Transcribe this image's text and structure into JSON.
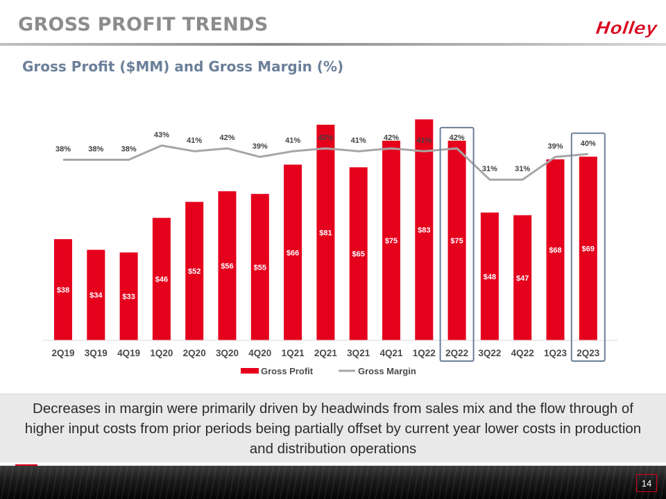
{
  "header": {
    "title": "GROSS PROFIT TRENDS",
    "logo_text": "Holley",
    "subtitle": "Gross Profit ($MM) and Gross Margin (%)"
  },
  "colors": {
    "bar": "#e5001c",
    "line": "#a6a6a6",
    "highlight_box": "#6a7f98",
    "logo": "#d9001b"
  },
  "chart_data": {
    "type": "bar",
    "categories": [
      "2Q19",
      "3Q19",
      "4Q19",
      "1Q20",
      "2Q20",
      "3Q20",
      "4Q20",
      "1Q21",
      "2Q21",
      "3Q21",
      "4Q21",
      "1Q22",
      "2Q22",
      "3Q22",
      "4Q22",
      "1Q23",
      "2Q23"
    ],
    "series": [
      {
        "name": "Gross Profit",
        "type": "bar",
        "values": [
          38,
          34,
          33,
          46,
          52,
          56,
          55,
          66,
          81,
          65,
          75,
          83,
          75,
          48,
          47,
          68,
          69
        ],
        "labels": [
          "$38",
          "$34",
          "$33",
          "$46",
          "$52",
          "$56",
          "$55",
          "$66",
          "$81",
          "$65",
          "$75",
          "$83",
          "$75",
          "$48",
          "$47",
          "$68",
          "$69"
        ]
      },
      {
        "name": "Gross Margin",
        "type": "line",
        "values": [
          38,
          38,
          38,
          43,
          41,
          42,
          39,
          41,
          42,
          41,
          42,
          41,
          42,
          31,
          31,
          39,
          40
        ],
        "labels": [
          "38%",
          "38%",
          "38%",
          "43%",
          "41%",
          "42%",
          "39%",
          "41%",
          "42%",
          "41%",
          "42%",
          "41%",
          "42%",
          "31%",
          "31%",
          "39%",
          "40%"
        ]
      }
    ],
    "highlighted_categories": [
      "2Q22",
      "2Q23"
    ],
    "legend_position": "bottom",
    "grid": false
  },
  "callout": {
    "text": "Decreases in margin were primarily driven by headwinds from sales mix and the flow through of higher input costs from prior periods being partially offset by current year lower costs in production and distribution operations"
  },
  "footer": {
    "page_number": "14"
  }
}
